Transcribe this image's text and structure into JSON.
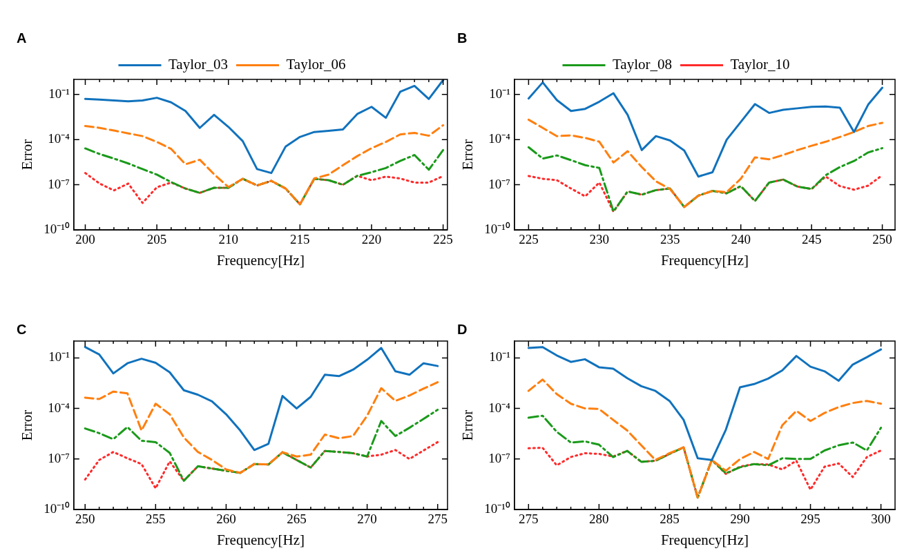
{
  "chart_data": [
    {
      "type": "line",
      "title": "A",
      "xlabel": "Frequency[Hz]",
      "ylabel": "Error",
      "log": true,
      "marker": "none",
      "legend": "top",
      "xlim": [
        199.2,
        225.3
      ],
      "ylim": [
        1e-10,
        1
      ],
      "xticks": [
        200,
        {
          "value": 201,
          "label": null
        },
        {
          "value": 202,
          "label": null
        },
        {
          "value": 203,
          "label": null
        },
        {
          "value": 204,
          "label": null
        },
        205,
        {
          "value": 206,
          "label": null
        },
        {
          "value": 207,
          "label": null
        },
        {
          "value": 208,
          "label": null
        },
        {
          "value": 209,
          "label": null
        },
        210,
        {
          "value": 211,
          "label": null
        },
        {
          "value": 212,
          "label": null
        },
        {
          "value": 213,
          "label": null
        },
        {
          "value": 214,
          "label": null
        },
        215,
        {
          "value": 216,
          "label": null
        },
        {
          "value": 217,
          "label": null
        },
        {
          "value": 218,
          "label": null
        },
        {
          "value": 219,
          "label": null
        },
        220,
        {
          "value": 221,
          "label": null
        },
        {
          "value": 222,
          "label": null
        },
        {
          "value": 223,
          "label": null
        },
        {
          "value": 224,
          "label": null
        },
        225
      ],
      "yticks": [
        {
          "value": 1e-10,
          "label": "10⁻¹⁰"
        },
        {
          "value": 1e-07,
          "label": "10⁻⁷"
        },
        {
          "value": 0.0001,
          "label": "10⁻⁴"
        },
        {
          "value": 0.1,
          "label": "10⁻¹"
        }
      ],
      "x": [
        200,
        201,
        202,
        203,
        204,
        205,
        206,
        207,
        208,
        209,
        210,
        211,
        212,
        213,
        214,
        215,
        216,
        217,
        218,
        219,
        220,
        221,
        222,
        223,
        224,
        225
      ],
      "series": [
        {
          "name": "Taylor_03",
          "color": "#1072bd",
          "line_style": "solid",
          "values": [
            0.05,
            0.045,
            0.04,
            0.035,
            0.04,
            0.06,
            0.03,
            0.008,
            0.0006,
            0.0044,
            0.0007,
            8e-05,
            1.1e-06,
            6e-07,
            3.5e-05,
            0.00015,
            0.00032,
            0.00038,
            0.00047,
            0.005,
            0.015,
            0.0028,
            0.15,
            0.37,
            0.05,
            0.9
          ]
        },
        {
          "name": "Taylor_06",
          "color": "#ff7f0e",
          "line_style": "dashed",
          "values": [
            0.0008,
            0.0006,
            0.0004,
            0.00026,
            0.00017,
            7e-05,
            2.4e-05,
            2.3e-06,
            4.6e-06,
            5e-07,
            7e-08,
            2.5e-07,
            9e-08,
            1.8e-07,
            5.6e-08,
            5e-09,
            2.6e-07,
            4.7e-07,
            2e-06,
            8e-06,
            2.7e-05,
            7e-05,
            0.00022,
            0.00028,
            0.00018,
            0.0009
          ]
        },
        {
          "color": "#1a9a1a",
          "line_style": "dashdot",
          "values": [
            2.6e-05,
            1.1e-05,
            5.5e-06,
            2.6e-06,
            1.1e-06,
            4.7e-07,
            1.5e-07,
            5.6e-08,
            2.9e-08,
            6.3e-08,
            6.3e-08,
            2.5e-07,
            9e-08,
            1.8e-07,
            5.6e-08,
            5e-09,
            2.5e-07,
            2e-07,
            1e-07,
            3.9e-07,
            6.8e-07,
            1.3e-06,
            3.8e-06,
            9.5e-06,
            1e-06,
            2e-05
          ]
        },
        {
          "color": "#ff2a2a",
          "line_style": "dotted",
          "values": [
            6e-07,
            1.2e-07,
            4.2e-08,
            1.2e-07,
            6.2e-09,
            6.8e-08,
            1.4e-07,
            5.6e-08,
            2.9e-08,
            6.3e-08,
            6.3e-08,
            2.5e-07,
            9e-08,
            1.8e-07,
            5.6e-08,
            5e-09,
            2.5e-07,
            2e-07,
            1e-07,
            3.9e-07,
            2e-07,
            3.5e-07,
            2.6e-07,
            1.4e-07,
            1.4e-07,
            3.8e-07
          ]
        }
      ]
    },
    {
      "type": "line",
      "title": "B",
      "xlabel": "Frequency[Hz]",
      "ylabel": "Error",
      "log": true,
      "marker": "none",
      "legend": "top",
      "xlim": [
        224,
        250.9
      ],
      "ylim": [
        1e-10,
        1
      ],
      "xticks": [
        225,
        {
          "value": 226,
          "label": null
        },
        {
          "value": 227,
          "label": null
        },
        {
          "value": 228,
          "label": null
        },
        {
          "value": 229,
          "label": null
        },
        230,
        {
          "value": 231,
          "label": null
        },
        {
          "value": 232,
          "label": null
        },
        {
          "value": 233,
          "label": null
        },
        {
          "value": 234,
          "label": null
        },
        235,
        {
          "value": 236,
          "label": null
        },
        {
          "value": 237,
          "label": null
        },
        {
          "value": 238,
          "label": null
        },
        {
          "value": 239,
          "label": null
        },
        240,
        {
          "value": 241,
          "label": null
        },
        {
          "value": 242,
          "label": null
        },
        {
          "value": 243,
          "label": null
        },
        {
          "value": 244,
          "label": null
        },
        245,
        {
          "value": 246,
          "label": null
        },
        {
          "value": 247,
          "label": null
        },
        {
          "value": 248,
          "label": null
        },
        {
          "value": 249,
          "label": null
        },
        250
      ],
      "yticks": [
        {
          "value": 1e-10,
          "label": "10⁻¹⁰"
        },
        {
          "value": 1e-07,
          "label": "10⁻⁷"
        },
        {
          "value": 0.0001,
          "label": "10⁻⁴"
        },
        {
          "value": 0.1,
          "label": "10⁻¹"
        }
      ],
      "x": [
        225,
        226,
        227,
        228,
        229,
        230,
        231,
        232,
        233,
        234,
        235,
        236,
        237,
        238,
        239,
        240,
        241,
        242,
        243,
        244,
        245,
        246,
        247,
        248,
        249,
        250
      ],
      "series": [
        {
          "color": "#1072bd",
          "line_style": "solid",
          "values": [
            0.054,
            0.63,
            0.042,
            0.008,
            0.011,
            0.033,
            0.12,
            0.0044,
            2e-05,
            0.00017,
            8.7e-05,
            1.9e-05,
            3.5e-07,
            6.8e-07,
            9.8e-05,
            0.0015,
            0.023,
            0.0059,
            0.0095,
            0.012,
            0.015,
            0.016,
            0.013,
            0.00032,
            0.021,
            0.28
          ]
        },
        {
          "color": "#ff7f0e",
          "line_style": "dashed",
          "values": [
            0.0021,
            0.0006,
            0.00017,
            0.00019,
            0.00013,
            7.2e-05,
            3e-06,
            1.7e-05,
            1.5e-06,
            1.7e-07,
            5.2e-08,
            3.3e-09,
            1.9e-08,
            3.9e-08,
            3.2e-08,
            2.5e-07,
            6.6e-06,
            4.9e-06,
            9.5e-06,
            2e-05,
            3.9e-05,
            7.2e-05,
            0.00015,
            0.00032,
            0.0008,
            0.0013
          ]
        },
        {
          "name": "Taylor_08",
          "color": "#1a9a1a",
          "line_style": "dashdot",
          "values": [
            3.1e-05,
            5.5e-06,
            8.9e-06,
            4.3e-06,
            2e-06,
            1.3e-06,
            1.7e-09,
            3.6e-08,
            2.2e-08,
            4.4e-08,
            5.6e-08,
            3.3e-09,
            1.9e-08,
            3.9e-08,
            2.7e-08,
            8.1e-08,
            8.3e-09,
            1.4e-07,
            2.2e-07,
            7.6e-08,
            5.2e-08,
            4.3e-07,
            1.5e-06,
            3.8e-06,
            1.4e-05,
            2.7e-05
          ]
        },
        {
          "name": "Taylor_10",
          "color": "#ff2a2a",
          "line_style": "dotted",
          "values": [
            3.8e-07,
            2.5e-07,
            2e-07,
            5.6e-08,
            1.7e-08,
            1.4e-07,
            1.6e-09,
            3.6e-08,
            2.2e-08,
            4.4e-08,
            5.6e-08,
            3.3e-09,
            1.9e-08,
            3.9e-08,
            2.7e-08,
            8.1e-08,
            8.3e-09,
            1.4e-07,
            2.2e-07,
            7.6e-08,
            5.2e-08,
            3.5e-07,
            8.1e-08,
            4.7e-08,
            8.7e-08,
            4.3e-07
          ]
        }
      ]
    },
    {
      "type": "line",
      "title": "C",
      "xlabel": "Frequency[Hz]",
      "ylabel": "Error",
      "log": true,
      "marker": "none",
      "xlim": [
        249.2,
        275.7
      ],
      "ylim": [
        1e-10,
        1
      ],
      "xticks": [
        250,
        {
          "value": 251,
          "label": null
        },
        {
          "value": 252,
          "label": null
        },
        {
          "value": 253,
          "label": null
        },
        {
          "value": 254,
          "label": null
        },
        255,
        {
          "value": 256,
          "label": null
        },
        {
          "value": 257,
          "label": null
        },
        {
          "value": 258,
          "label": null
        },
        {
          "value": 259,
          "label": null
        },
        260,
        {
          "value": 261,
          "label": null
        },
        {
          "value": 262,
          "label": null
        },
        {
          "value": 263,
          "label": null
        },
        {
          "value": 264,
          "label": null
        },
        265,
        {
          "value": 266,
          "label": null
        },
        {
          "value": 267,
          "label": null
        },
        {
          "value": 268,
          "label": null
        },
        {
          "value": 269,
          "label": null
        },
        270,
        {
          "value": 271,
          "label": null
        },
        {
          "value": 272,
          "label": null
        },
        {
          "value": 273,
          "label": null
        },
        {
          "value": 274,
          "label": null
        },
        275
      ],
      "yticks": [
        {
          "value": 1e-10,
          "label": "10⁻¹⁰"
        },
        {
          "value": 1e-07,
          "label": "10⁻⁷"
        },
        {
          "value": 0.0001,
          "label": "10⁻⁴"
        },
        {
          "value": 0.1,
          "label": "10⁻¹"
        }
      ],
      "x": [
        250,
        251,
        252,
        253,
        254,
        255,
        256,
        257,
        258,
        259,
        260,
        261,
        262,
        263,
        264,
        265,
        266,
        267,
        268,
        269,
        270,
        271,
        272,
        273,
        274,
        275
      ],
      "series": [
        {
          "color": "#1072bd",
          "line_style": "solid",
          "values": [
            0.44,
            0.16,
            0.012,
            0.048,
            0.089,
            0.051,
            0.014,
            0.0012,
            0.00065,
            0.00026,
            4.5e-05,
            4.9e-06,
            3.4e-07,
            7.9e-07,
            0.00055,
            0.0001,
            0.00049,
            0.01,
            0.0083,
            0.02,
            0.078,
            0.39,
            0.016,
            0.01,
            0.048,
            0.033
          ]
        },
        {
          "color": "#ff7f0e",
          "line_style": "dashed",
          "values": [
            0.00044,
            0.00036,
            0.001,
            0.00079,
            4.9e-06,
            0.00019,
            4.5e-05,
            1.9e-06,
            2.6e-07,
            8.7e-08,
            2.4e-08,
            1.5e-08,
            5e-08,
            4.7e-08,
            2.5e-07,
            1.4e-07,
            1.8e-07,
            2.8e-06,
            1.7e-06,
            2.3e-06,
            3.7e-05,
            0.0016,
            0.00028,
            0.00059,
            0.0015,
            0.0036
          ]
        },
        {
          "color": "#1a9a1a",
          "line_style": "dashdot",
          "values": [
            6.5e-06,
            3.4e-06,
            1.5e-06,
            7.9e-06,
            1.2e-06,
            1e-06,
            2.3e-07,
            5.1e-09,
            3.7e-08,
            2.7e-08,
            2e-08,
            1.5e-08,
            5e-08,
            4.7e-08,
            2.5e-07,
            8.7e-08,
            3.1e-08,
            3e-07,
            2.6e-07,
            2.2e-07,
            1.4e-07,
            1.8e-05,
            2.3e-06,
            7.1e-06,
            2.4e-05,
            8.3e-05
          ]
        },
        {
          "color": "#ff2a2a",
          "line_style": "dotted",
          "values": [
            6e-09,
            8.7e-08,
            2.6e-07,
            1.1e-07,
            5e-08,
            1.8e-09,
            7.2e-08,
            5.1e-09,
            3.7e-08,
            2.7e-08,
            2e-08,
            1.5e-08,
            5e-08,
            4.7e-08,
            2.5e-07,
            8.7e-08,
            3.1e-08,
            3e-07,
            2.6e-07,
            2.2e-07,
            1.4e-07,
            1.8e-07,
            3.4e-07,
            1e-07,
            3.2e-07,
            1e-06
          ]
        }
      ]
    },
    {
      "type": "line",
      "title": "D",
      "xlabel": "Frequency[Hz]",
      "ylabel": "Error",
      "log": true,
      "marker": "none",
      "xlim": [
        274,
        301
      ],
      "ylim": [
        1e-10,
        1
      ],
      "xticks": [
        275,
        {
          "value": 276,
          "label": null
        },
        {
          "value": 277,
          "label": null
        },
        {
          "value": 278,
          "label": null
        },
        {
          "value": 279,
          "label": null
        },
        280,
        {
          "value": 281,
          "label": null
        },
        {
          "value": 282,
          "label": null
        },
        {
          "value": 283,
          "label": null
        },
        {
          "value": 284,
          "label": null
        },
        285,
        {
          "value": 286,
          "label": null
        },
        {
          "value": 287,
          "label": null
        },
        {
          "value": 288,
          "label": null
        },
        {
          "value": 289,
          "label": null
        },
        290,
        {
          "value": 291,
          "label": null
        },
        {
          "value": 292,
          "label": null
        },
        {
          "value": 293,
          "label": null
        },
        {
          "value": 294,
          "label": null
        },
        295,
        {
          "value": 296,
          "label": null
        },
        {
          "value": 297,
          "label": null
        },
        {
          "value": 298,
          "label": null
        },
        {
          "value": 299,
          "label": null
        },
        300
      ],
      "yticks": [
        {
          "value": 1e-10,
          "label": "10⁻¹⁰"
        },
        {
          "value": 1e-07,
          "label": "10⁻⁷"
        },
        {
          "value": 0.0001,
          "label": "10⁻⁴"
        },
        {
          "value": 0.1,
          "label": "10⁻¹"
        }
      ],
      "x": [
        275,
        276,
        277,
        278,
        279,
        280,
        281,
        282,
        283,
        284,
        285,
        286,
        287,
        288,
        289,
        290,
        291,
        292,
        293,
        294,
        295,
        296,
        297,
        298,
        299,
        300
      ],
      "series": [
        {
          "color": "#1072bd",
          "line_style": "solid",
          "values": [
            0.39,
            0.44,
            0.14,
            0.058,
            0.083,
            0.028,
            0.023,
            0.0063,
            0.0021,
            0.0011,
            0.00028,
            2.1e-05,
            1.1e-07,
            8.7e-08,
            5.5e-06,
            0.0018,
            0.0028,
            0.0059,
            0.018,
            0.13,
            0.03,
            0.016,
            0.0044,
            0.04,
            0.11,
            0.32
          ]
        },
        {
          "color": "#ff7f0e",
          "line_style": "dashed",
          "values": [
            0.0011,
            0.0052,
            0.00071,
            0.00019,
            0.0001,
            9.3e-05,
            2.1e-05,
            4.9e-06,
            6.5e-07,
            8.7e-08,
            2.2e-07,
            4.9e-07,
            5.1e-10,
            8.7e-08,
            2e-08,
            9.8e-08,
            2.6e-07,
            1e-07,
            1e-05,
            7.2e-05,
            1.8e-05,
            5.4e-05,
            0.00012,
            0.00021,
            0.00028,
            0.00019
          ]
        },
        {
          "color": "#1a9a1a",
          "line_style": "dashdot",
          "values": [
            2.8e-05,
            3.7e-05,
            4.1e-06,
            9.5e-07,
            1.1e-06,
            7.1e-07,
            1.3e-07,
            3e-07,
            6.8e-08,
            7.8e-08,
            2e-07,
            4.9e-07,
            5.1e-10,
            8.7e-08,
            1.4e-08,
            3.2e-08,
            5e-08,
            4.2e-08,
            1.1e-07,
            1e-07,
            1e-07,
            3.2e-07,
            6.5e-07,
            9.5e-07,
            3.2e-07,
            7.1e-06
          ]
        },
        {
          "color": "#ff2a2a",
          "line_style": "dotted",
          "values": [
            4.3e-07,
            4.6e-07,
            4.2e-08,
            1.3e-07,
            2.2e-07,
            2e-07,
            1.4e-07,
            3e-07,
            6.8e-08,
            7.8e-08,
            2e-07,
            4.9e-07,
            5.1e-10,
            8.7e-08,
            1.3e-08,
            3.5e-08,
            5e-08,
            4.7e-08,
            2.4e-08,
            7.8e-08,
            1.5e-09,
            3.5e-08,
            5.4e-08,
            8.5e-09,
            1.3e-07,
            3.2e-07
          ]
        }
      ]
    }
  ]
}
